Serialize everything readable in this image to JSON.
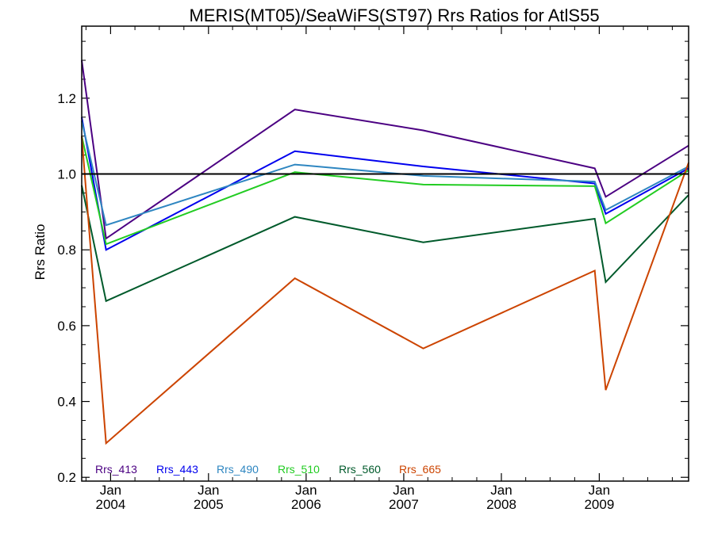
{
  "chart_data": {
    "type": "line",
    "title": "MERIS(MT05)/SeaWiFS(ST97)  Rrs Ratios for AtlS55",
    "xlabel": "",
    "ylabel": "Rrs Ratio",
    "xlim": [
      "2003-09-15",
      "2009-12-01"
    ],
    "ylim": [
      0.19,
      1.39
    ],
    "x_ticks": [
      {
        "date": "2004-01-01",
        "label": [
          "Jan",
          "2004"
        ]
      },
      {
        "date": "2005-01-01",
        "label": [
          "Jan",
          "2005"
        ]
      },
      {
        "date": "2006-01-01",
        "label": [
          "Jan",
          "2006"
        ]
      },
      {
        "date": "2007-01-01",
        "label": [
          "Jan",
          "2007"
        ]
      },
      {
        "date": "2008-01-01",
        "label": [
          "Jan",
          "2008"
        ]
      },
      {
        "date": "2009-01-01",
        "label": [
          "Jan",
          "2009"
        ]
      }
    ],
    "y_ticks": [
      0.2,
      0.4,
      0.6,
      0.8,
      1.0,
      1.2
    ],
    "y_tick_labels": [
      "0.2",
      "0.4",
      "0.6",
      "0.8",
      "1.0",
      "1.2"
    ],
    "reference_line": 1.0,
    "reference_color": "#000000",
    "legend_position": "bottom-left",
    "x": [
      "2003-09-15",
      "2003-12-15",
      "2005-11-20",
      "2007-03-15",
      "2008-12-15",
      "2009-01-25",
      "2009-12-01"
    ],
    "series": [
      {
        "name": "Rrs_413",
        "color": "#4b0082",
        "values": [
          1.3,
          0.83,
          1.17,
          1.115,
          1.015,
          0.94,
          1.075
        ]
      },
      {
        "name": "Rrs_443",
        "color": "#0000ee",
        "values": [
          1.15,
          0.8,
          1.06,
          1.02,
          0.975,
          0.895,
          1.015
        ]
      },
      {
        "name": "Rrs_490",
        "color": "#2e86c1",
        "values": [
          1.14,
          0.865,
          1.025,
          0.995,
          0.98,
          0.905,
          1.02
        ]
      },
      {
        "name": "Rrs_510",
        "color": "#22cc22",
        "values": [
          1.1,
          0.815,
          1.005,
          0.972,
          0.968,
          0.87,
          1.01
        ]
      },
      {
        "name": "Rrs_560",
        "color": "#005a2b",
        "values": [
          0.97,
          0.665,
          0.887,
          0.82,
          0.882,
          0.715,
          0.945
        ]
      },
      {
        "name": "Rrs_665",
        "color": "#cc4400",
        "values": [
          1.1,
          0.29,
          0.725,
          0.54,
          0.745,
          0.43,
          1.03
        ]
      }
    ]
  }
}
